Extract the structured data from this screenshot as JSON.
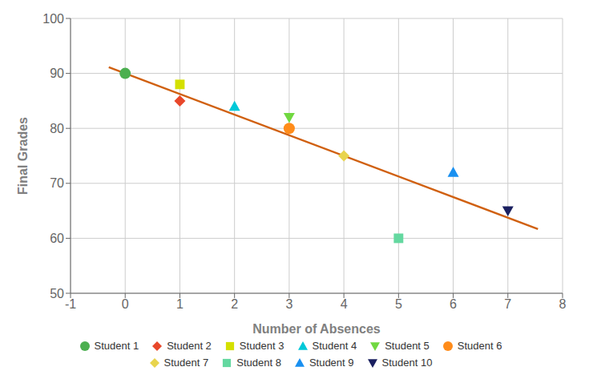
{
  "chart_data": {
    "type": "scatter",
    "xlabel": "Number of Absences",
    "ylabel": "Final Grades",
    "xlim": [
      -1,
      8
    ],
    "ylim": [
      50,
      100
    ],
    "xticks": [
      -1,
      0,
      1,
      2,
      3,
      4,
      5,
      6,
      7,
      8
    ],
    "yticks": [
      50,
      60,
      70,
      80,
      90,
      100
    ],
    "grid": true,
    "series": [
      {
        "type": "line",
        "color": "#d06010",
        "x": [
          -0.3,
          7.55
        ],
        "values": [
          91.125,
          61.6875
        ]
      },
      {
        "type": "scatter",
        "name": "Student 1",
        "color": "#4caf50",
        "marker": "circle",
        "x": [
          0
        ],
        "values": [
          90
        ]
      },
      {
        "type": "scatter",
        "name": "Student 2",
        "color": "#e8472a",
        "marker": "diamond",
        "x": [
          1
        ],
        "values": [
          85
        ]
      },
      {
        "type": "scatter",
        "name": "Student 3",
        "color": "#d4e000",
        "marker": "square",
        "x": [
          1
        ],
        "values": [
          88
        ]
      },
      {
        "type": "scatter",
        "name": "Student 4",
        "color": "#00c8d8",
        "marker": "triangle",
        "x": [
          2
        ],
        "values": [
          84
        ]
      },
      {
        "type": "scatter",
        "name": "Student 5",
        "color": "#70d840",
        "marker": "triangle-down",
        "x": [
          3
        ],
        "values": [
          82
        ]
      },
      {
        "type": "scatter",
        "name": "Student 6",
        "color": "#ff8c1a",
        "marker": "circle",
        "x": [
          3
        ],
        "values": [
          80
        ]
      },
      {
        "type": "scatter",
        "name": "Student 7",
        "color": "#e8d44d",
        "marker": "diamond",
        "x": [
          4
        ],
        "values": [
          75
        ]
      },
      {
        "type": "scatter",
        "name": "Student 8",
        "color": "#64d8a0",
        "marker": "square",
        "x": [
          5
        ],
        "values": [
          60
        ]
      },
      {
        "type": "scatter",
        "name": "Student 9",
        "color": "#1a90f0",
        "marker": "triangle",
        "x": [
          6
        ],
        "values": [
          72
        ]
      },
      {
        "type": "scatter",
        "name": "Student 10",
        "color": "#1a2060",
        "marker": "triangle-down",
        "x": [
          7
        ],
        "values": [
          65
        ]
      }
    ]
  }
}
